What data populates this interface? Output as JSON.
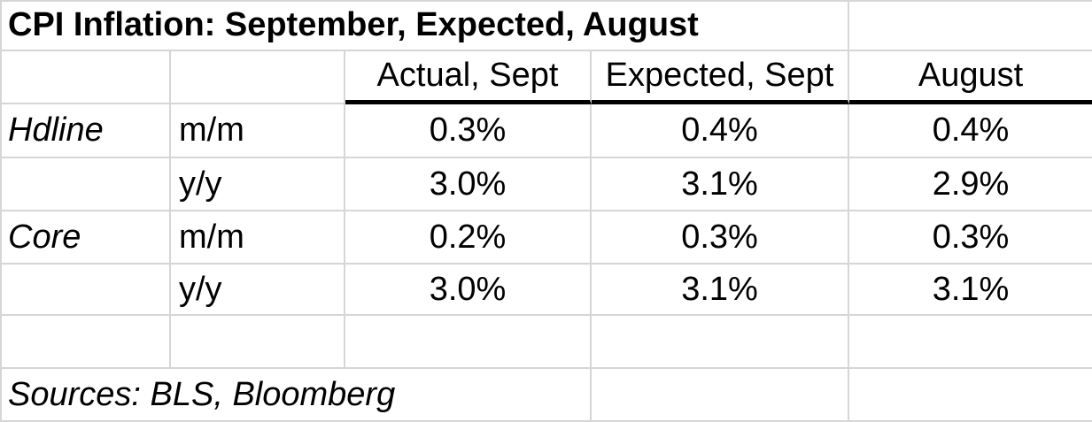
{
  "table": {
    "title": "CPI Inflation: September, Expected, August",
    "column_headers": [
      "Actual, Sept",
      "Expected, Sept",
      "August"
    ],
    "rows": [
      {
        "group": "Hdline",
        "period": "m/m",
        "values": [
          "0.3%",
          "0.4%",
          "0.4%"
        ]
      },
      {
        "group": "",
        "period": "y/y",
        "values": [
          "3.0%",
          "3.1%",
          "2.9%"
        ]
      },
      {
        "group": "Core",
        "period": "m/m",
        "values": [
          "0.2%",
          "0.3%",
          "0.3%"
        ]
      },
      {
        "group": "",
        "period": "y/y",
        "values": [
          "3.0%",
          "3.1%",
          "3.1%"
        ]
      }
    ],
    "footer": "Sources: BLS, Bloomberg"
  },
  "colors": {
    "gridline": "#d6d6d6",
    "header_rule": "#000000",
    "text": "#000000",
    "background": "#ffffff"
  }
}
